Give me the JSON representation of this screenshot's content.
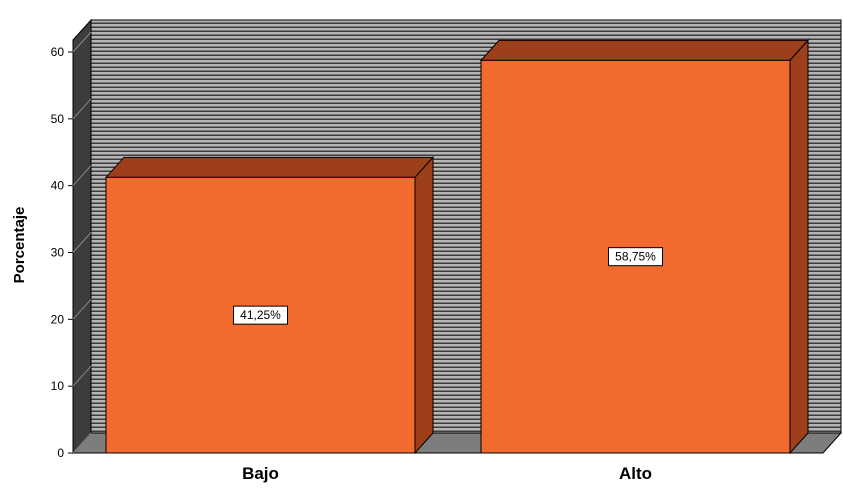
{
  "chart_data": {
    "type": "bar",
    "categories": [
      "Bajo",
      "Alto"
    ],
    "values": [
      41.25,
      58.75
    ],
    "data_labels": [
      "41,25%",
      "58,75%"
    ],
    "ylabel": "Porcentaje",
    "xlabel": "",
    "ylim": [
      0,
      60
    ],
    "yticks": [
      "0",
      "10",
      "20",
      "30",
      "40",
      "50",
      "60"
    ],
    "grid": true,
    "style": "3d",
    "colors": {
      "bar_front": "#f26a2e",
      "bar_top": "#9c3f1a",
      "bar_side": "#9c3f1a",
      "wall": "#a8a8a8",
      "floor": "#7d7d7d",
      "grid_line": "#2a2a2a"
    }
  }
}
